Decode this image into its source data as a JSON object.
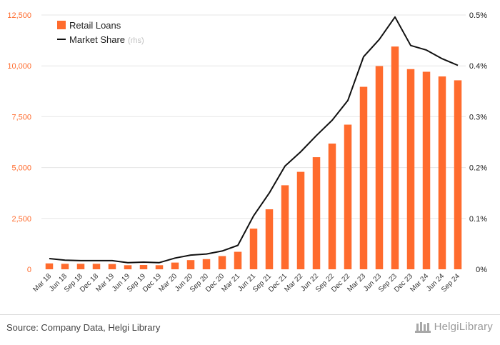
{
  "colors": {
    "bar": "#ff6b2d",
    "line": "#111111",
    "left_axis_text": "#ff6b2d",
    "right_axis_text": "#222222",
    "grid": "#e6e6e6",
    "rhs_note": "#c0c0c0"
  },
  "source_text": "Source: Company Data, Helgi Library",
  "logo_text": "HelgiLibrary",
  "chart_data": {
    "type": "bar",
    "categories": [
      "Mar 18",
      "Jun 18",
      "Sep 18",
      "Dec 18",
      "Mar 19",
      "Jun 19",
      "Sep 19",
      "Dec 19",
      "Mar 20",
      "Jun 20",
      "Sep 20",
      "Dec 20",
      "Mar 21",
      "Jun 21",
      "Sep 21",
      "Dec 21",
      "Mar 22",
      "Jun 22",
      "Sep 22",
      "Dec 22",
      "Mar 23",
      "Jun 23",
      "Sep 23",
      "Dec 23",
      "Mar 24",
      "Jun 24",
      "Sep 24"
    ],
    "series": [
      {
        "name": "Retail Loans",
        "type": "bar",
        "axis": "left",
        "values": [
          290,
          270,
          270,
          270,
          260,
          200,
          210,
          200,
          330,
          450,
          500,
          650,
          860,
          2000,
          2950,
          4130,
          4790,
          5510,
          6180,
          7110,
          8970,
          9990,
          10950,
          9840,
          9710,
          9480,
          9290
        ]
      },
      {
        "name": "Market Share",
        "name_note": "(rhs)",
        "type": "line",
        "axis": "right",
        "values": [
          0.00021,
          0.00018,
          0.00017,
          0.00017,
          0.00017,
          0.00013,
          0.00014,
          0.00013,
          0.00022,
          0.00028,
          0.0003,
          0.00036,
          0.00047,
          0.00105,
          0.0015,
          0.00203,
          0.00231,
          0.00263,
          0.00293,
          0.00332,
          0.00418,
          0.00452,
          0.00496,
          0.0044,
          0.00431,
          0.00414,
          0.00401
        ]
      }
    ],
    "y_left": {
      "min": 0,
      "max": 12500,
      "ticks": [
        "0",
        "2,500",
        "5,000",
        "7,500",
        "10,000",
        "12,500"
      ]
    },
    "y_right": {
      "min": 0,
      "max": 0.005,
      "ticks": [
        "0%",
        "0.1%",
        "0.2%",
        "0.3%",
        "0.4%",
        "0.5%"
      ]
    },
    "grid": true,
    "legend_position": "top-left"
  }
}
